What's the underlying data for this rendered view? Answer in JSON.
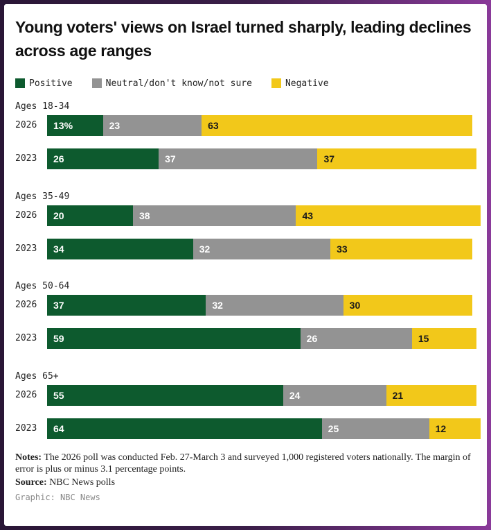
{
  "colors": {
    "positive": "#0d5a2e",
    "neutral": "#939393",
    "negative": "#f2c81a"
  },
  "chart_data": {
    "type": "bar",
    "orientation": "horizontal-stacked",
    "title": "Young voters' views on Israel turned sharply, leading declines across age ranges",
    "legend": [
      "Positive",
      "Neutral/don't know/not sure",
      "Negative"
    ],
    "groups": [
      {
        "label": "Ages 18-34",
        "rows": [
          {
            "year": "2026",
            "values": [
              13,
              23,
              63
            ],
            "labels": [
              "13%",
              "23",
              "63"
            ]
          },
          {
            "year": "2023",
            "values": [
              26,
              37,
              37
            ],
            "labels": [
              "26",
              "37",
              "37"
            ]
          }
        ]
      },
      {
        "label": "Ages 35-49",
        "rows": [
          {
            "year": "2026",
            "values": [
              20,
              38,
              43
            ],
            "labels": [
              "20",
              "38",
              "43"
            ]
          },
          {
            "year": "2023",
            "values": [
              34,
              32,
              33
            ],
            "labels": [
              "34",
              "32",
              "33"
            ]
          }
        ]
      },
      {
        "label": "Ages 50-64",
        "rows": [
          {
            "year": "2026",
            "values": [
              37,
              32,
              30
            ],
            "labels": [
              "37",
              "32",
              "30"
            ]
          },
          {
            "year": "2023",
            "values": [
              59,
              26,
              15
            ],
            "labels": [
              "59",
              "26",
              "15"
            ]
          }
        ]
      },
      {
        "label": "Ages 65+",
        "rows": [
          {
            "year": "2026",
            "values": [
              55,
              24,
              21
            ],
            "labels": [
              "55",
              "24",
              "21"
            ]
          },
          {
            "year": "2023",
            "values": [
              64,
              25,
              12
            ],
            "labels": [
              "64",
              "25",
              "12"
            ]
          }
        ]
      }
    ],
    "xlim": [
      0,
      101
    ]
  },
  "notes": {
    "label": "Notes:",
    "text": " The 2026 poll was conducted Feb. 27-March 3 and surveyed 1,000 registered voters nationally. The margin of error is plus or minus 3.1 percentage points."
  },
  "source": {
    "label": "Source:",
    "text": " NBC News polls"
  },
  "credit": "Graphic: NBC News"
}
